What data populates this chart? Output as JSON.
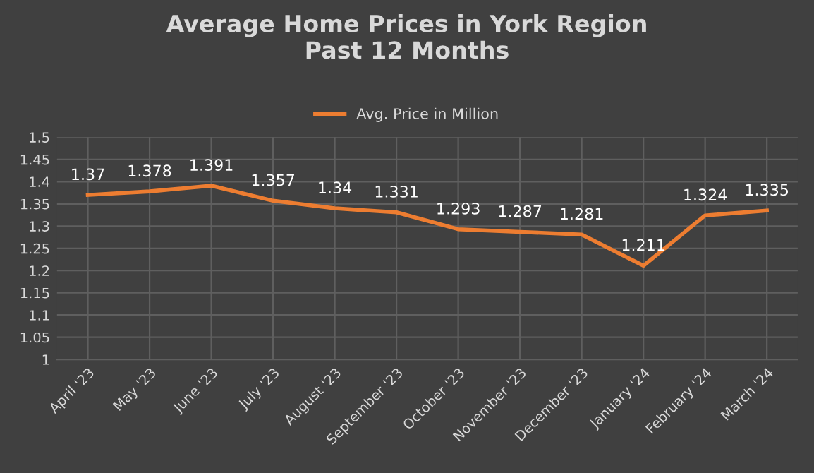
{
  "chart_data": {
    "type": "line",
    "title": "Average Home Prices in York Region\nPast 12 Months",
    "categories": [
      "April '23",
      "May '23",
      "June '23",
      "July '23",
      "August '23",
      "September '23",
      "October '23",
      "November '23",
      "December '23",
      "January '24",
      "February '24",
      "March '24"
    ],
    "series": [
      {
        "name": "Avg. Price in Million",
        "color": "#ed7d31",
        "values": [
          1.37,
          1.378,
          1.391,
          1.357,
          1.34,
          1.331,
          1.293,
          1.287,
          1.281,
          1.211,
          1.324,
          1.335
        ]
      }
    ],
    "ylim": [
      1,
      1.5
    ],
    "yticks": [
      {
        "value": 1,
        "label": "1"
      },
      1.05,
      {
        "value": 1.1,
        "label": "1.1"
      },
      1.15,
      {
        "value": 1.2,
        "label": "1.2"
      },
      1.25,
      {
        "value": 1.3,
        "label": "1.3"
      },
      1.35,
      {
        "value": 1.4,
        "label": "1.4"
      },
      1.45,
      {
        "value": 1.5,
        "label": "1.5"
      }
    ],
    "grid": true,
    "legend": "top",
    "data_labels": true,
    "marker": "none",
    "line_style": "solid"
  }
}
